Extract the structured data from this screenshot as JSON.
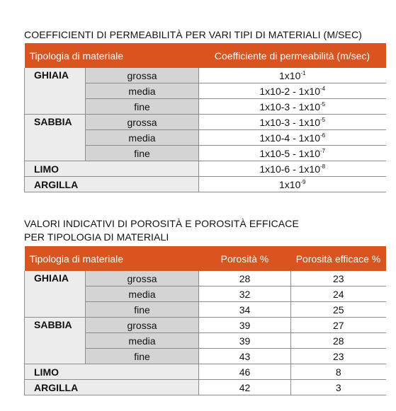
{
  "table1": {
    "title": "COEFFICIENTI DI PERMEABILITÀ PER VARI TIPI DI MATERIALI (M/SEC)",
    "header": {
      "col1": "Tipologia di materiale",
      "col2": "Coefficiente di permeabilità (m/sec)"
    },
    "rows": [
      {
        "cat": "GHIAIA",
        "sub": "grossa",
        "base": "1x10",
        "exp": "-1"
      },
      {
        "sub": "media",
        "base": "1x10-2 - 1x10",
        "exp": "-4"
      },
      {
        "sub": "fine",
        "base": "1x10-3 - 1x10",
        "exp": "-5"
      },
      {
        "cat": "SABBIA",
        "sub": "grossa",
        "base": "1x10-3 - 1x10",
        "exp": "-5"
      },
      {
        "sub": "media",
        "base": "1x10-4 - 1x10",
        "exp": "-6"
      },
      {
        "sub": "fine",
        "base": "1x10-5 - 1x10",
        "exp": "-7"
      },
      {
        "cat": "LIMO",
        "base": "1x10-6 - 1x10",
        "exp": "-8"
      },
      {
        "cat": "ARGILLA",
        "base": "1x10",
        "exp": "-9"
      }
    ]
  },
  "table2": {
    "title_line1": "VALORI INDICATIVI DI POROSITÀ E POROSITÀ EFFICACE",
    "title_line2": "PER TIPOLOGIA DI MATERIALI",
    "header": {
      "col1": "Tipologia di materiale",
      "col2": "Porosità %",
      "col3": "Porosità efficace %"
    },
    "rows": [
      {
        "cat": "GHIAIA",
        "sub": "grossa",
        "porosity": "28",
        "effective": "23"
      },
      {
        "sub": "media",
        "porosity": "32",
        "effective": "24"
      },
      {
        "sub": "fine",
        "porosity": "34",
        "effective": "25"
      },
      {
        "cat": "SABBIA",
        "sub": "grossa",
        "porosity": "39",
        "effective": "27"
      },
      {
        "sub": "media",
        "porosity": "39",
        "effective": "28"
      },
      {
        "sub": "fine",
        "porosity": "43",
        "effective": "23"
      },
      {
        "cat": "LIMO",
        "porosity": "46",
        "effective": "8"
      },
      {
        "cat": "ARGILLA",
        "porosity": "42",
        "effective": "3"
      }
    ]
  },
  "colors": {
    "header_bg": "#d9541f",
    "category_bg": "#ececec",
    "subcategory_bg": "#d4d4d4"
  }
}
